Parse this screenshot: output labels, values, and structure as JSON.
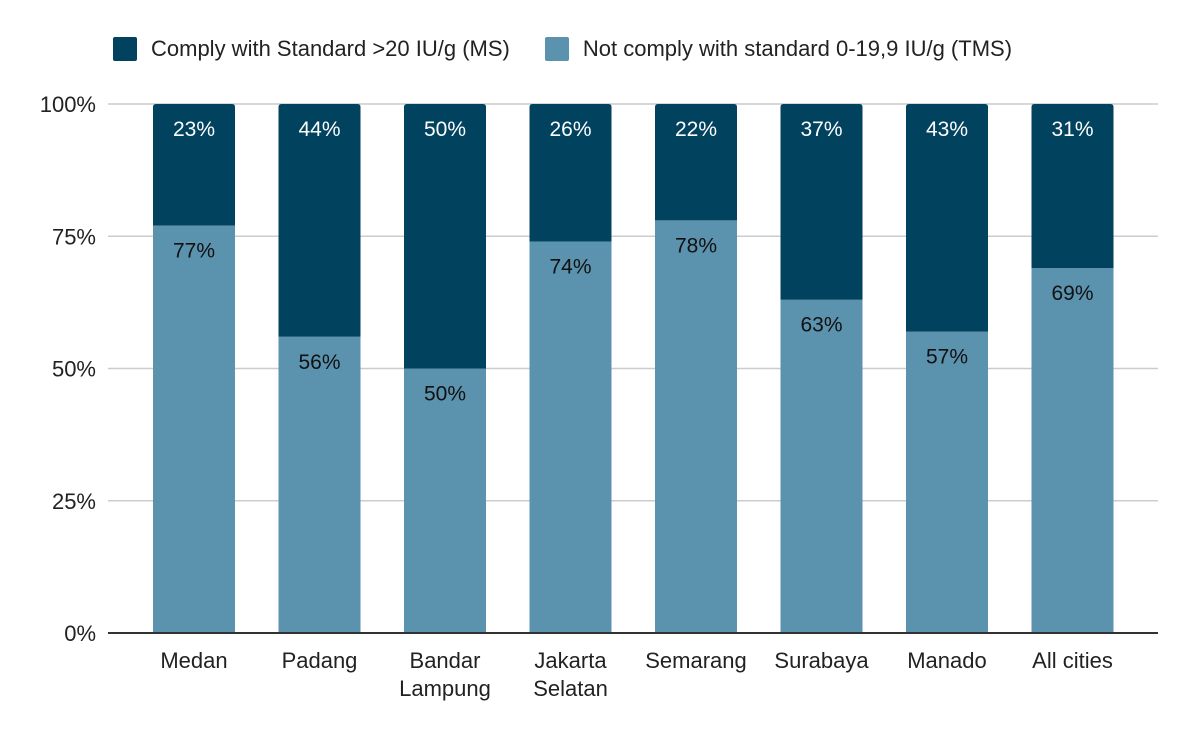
{
  "chart_data": {
    "type": "bar",
    "stacked": true,
    "categories": [
      "Medan",
      "Padang",
      "Bandar Lampung",
      "Jakarta Selatan",
      "Semarang",
      "Surabaya",
      "Manado",
      "All cities"
    ],
    "series": [
      {
        "name": "Not comply with standard 0-19,9 IU/g (TMS)",
        "color": "#5b92ae",
        "label_color": "#111111",
        "values": [
          77,
          56,
          50,
          74,
          78,
          63,
          57,
          69
        ],
        "labels": [
          "77%",
          "56%",
          "50%",
          "74%",
          "78%",
          "63%",
          "57%",
          "69%"
        ]
      },
      {
        "name": "Comply with Standard >20 IU/g (MS)",
        "color": "#01425f",
        "label_color": "#ffffff",
        "values": [
          23,
          44,
          50,
          26,
          22,
          37,
          43,
          31
        ],
        "labels": [
          "23%",
          "44%",
          "50%",
          "26%",
          "22%",
          "37%",
          "43%",
          "31%"
        ]
      }
    ],
    "legend_order": [
      1,
      0
    ],
    "legend_position": "top-left",
    "ylim": [
      0,
      100
    ],
    "yticks": [
      0,
      25,
      50,
      75,
      100
    ],
    "ytick_labels": [
      "0%",
      "25%",
      "50%",
      "75%",
      "100%"
    ],
    "grid": true,
    "title": "",
    "xlabel": "",
    "ylabel": ""
  }
}
